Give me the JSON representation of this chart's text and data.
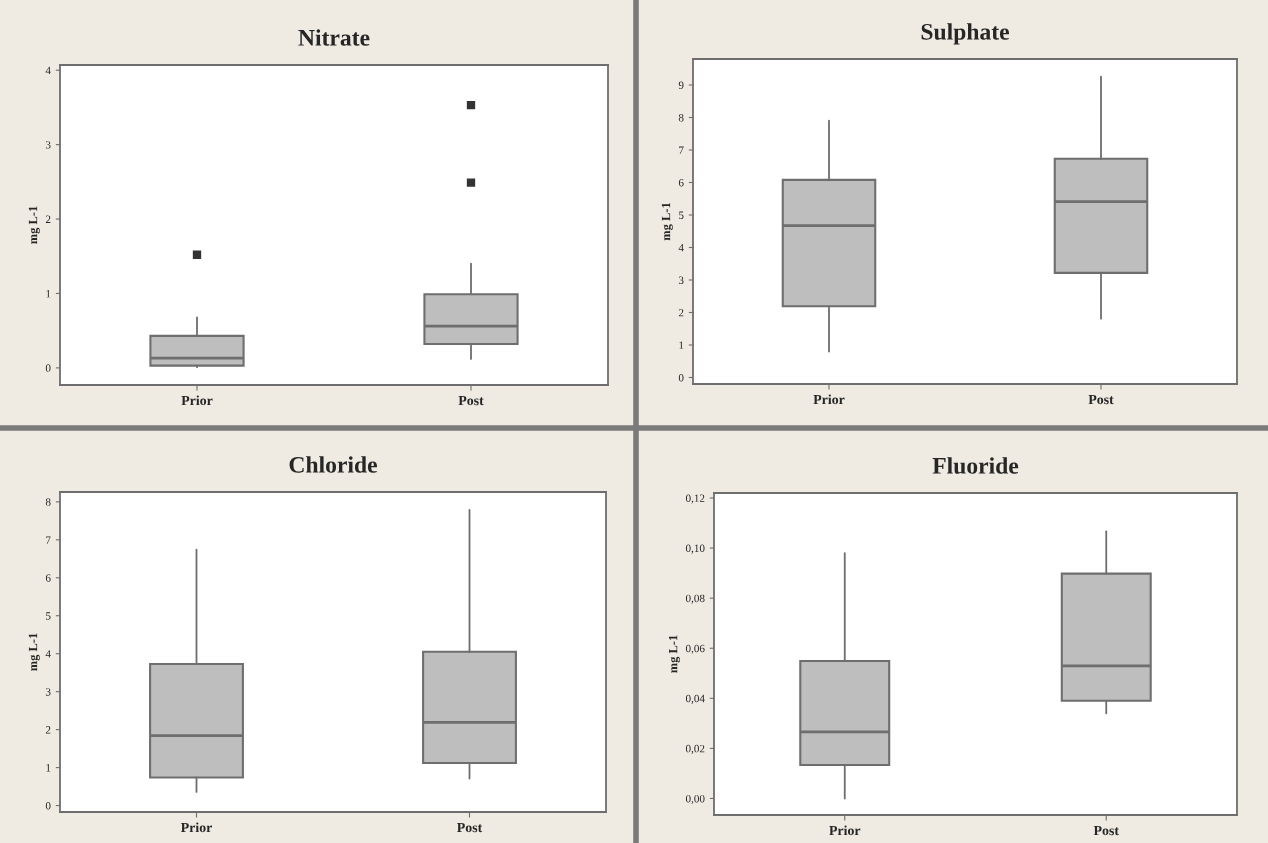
{
  "chart_data": [
    {
      "type": "box",
      "title": "Nitrate",
      "ylabel": "mg L-1",
      "categories": [
        "Prior",
        "Post"
      ],
      "marker": "square",
      "ylim": [
        -0.23,
        4.07
      ],
      "yticks": [
        0,
        1,
        2,
        3,
        4
      ],
      "color": "#bebebe",
      "boxes": [
        {
          "low": 0.01,
          "q1": 0.03,
          "median": 0.13,
          "q3": 0.43,
          "high": 0.68,
          "outliers": [
            1.52
          ]
        },
        {
          "low": 0.12,
          "q1": 0.32,
          "median": 0.56,
          "q3": 0.99,
          "high": 1.4,
          "outliers": [
            2.49,
            3.53
          ]
        }
      ]
    },
    {
      "type": "box",
      "title": "Sulphate",
      "ylabel": "mg L-1",
      "categories": [
        "Prior",
        "Post"
      ],
      "ylim": [
        -0.2,
        9.8
      ],
      "yticks": [
        0,
        1,
        2,
        3,
        4,
        5,
        6,
        7,
        8,
        9
      ],
      "color": "#bebebe",
      "boxes": [
        {
          "low": 0.8,
          "q1": 2.19,
          "median": 4.67,
          "q3": 6.08,
          "high": 7.9
        },
        {
          "low": 1.81,
          "q1": 3.22,
          "median": 5.41,
          "q3": 6.73,
          "high": 9.26
        }
      ]
    },
    {
      "type": "box",
      "title": "Chloride",
      "ylabel": "mg L-1",
      "categories": [
        "Prior",
        "Post"
      ],
      "ylim": [
        -0.17,
        8.26
      ],
      "yticks": [
        0,
        1,
        2,
        3,
        4,
        5,
        6,
        7,
        8
      ],
      "color": "#bebebe",
      "boxes": [
        {
          "low": 0.36,
          "q1": 0.74,
          "median": 1.84,
          "q3": 3.73,
          "high": 6.74
        },
        {
          "low": 0.71,
          "q1": 1.12,
          "median": 2.19,
          "q3": 4.05,
          "high": 7.79
        }
      ]
    },
    {
      "type": "box",
      "title": "Fluoride",
      "ylabel": "mg L-1",
      "categories": [
        "Prior",
        "Post"
      ],
      "ylim": [
        -0.0066,
        0.122
      ],
      "yticks": [
        {
          "value": 0,
          "label": "0,00"
        },
        {
          "value": 0.02,
          "label": "0,02"
        },
        {
          "value": 0.04,
          "label": "0,04"
        },
        {
          "value": 0.06,
          "label": "0,06"
        },
        {
          "value": 0.08,
          "label": "0,08"
        },
        {
          "value": 0.1,
          "label": "0,10"
        },
        {
          "value": 0.12,
          "label": "0,12"
        }
      ],
      "color": "#bebebe",
      "boxes": [
        {
          "low": 0.0,
          "q1": 0.0134,
          "median": 0.0266,
          "q3": 0.0549,
          "high": 0.098
        },
        {
          "low": 0.034,
          "q1": 0.039,
          "median": 0.053,
          "q3": 0.0898,
          "high": 0.1067
        }
      ]
    }
  ]
}
